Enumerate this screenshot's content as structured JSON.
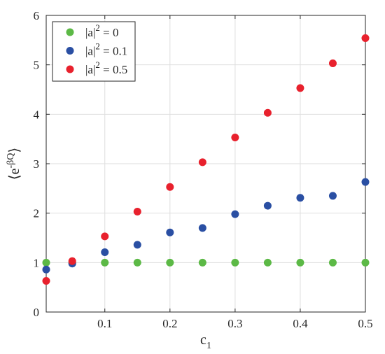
{
  "chart_data": {
    "type": "scatter",
    "xlabel": "c",
    "xlabel_sub": "1",
    "ylabel": "⟨e",
    "ylabel_sup": "-βQ",
    "ylabel_close": "⟩",
    "xlim": [
      0.01,
      0.5
    ],
    "ylim": [
      0,
      6
    ],
    "xticks": [
      0.1,
      0.2,
      0.3,
      0.4,
      0.5
    ],
    "yticks": [
      0,
      1,
      2,
      3,
      4,
      5,
      6
    ],
    "grid": true,
    "legend_position": "top-left",
    "x": [
      0.01,
      0.05,
      0.1,
      0.15,
      0.2,
      0.25,
      0.3,
      0.35,
      0.4,
      0.45,
      0.5
    ],
    "series": [
      {
        "name": "|a|2 = 0",
        "label_pre": "|a|",
        "label_sup": "2",
        "label_post": " = 0",
        "color": "#5cb946",
        "values": [
          1,
          1,
          1,
          1,
          1,
          1,
          1,
          1,
          1,
          1,
          1
        ]
      },
      {
        "name": "|a|2 = 0.1",
        "label_pre": "|a|",
        "label_sup": "2",
        "label_post": " = 0.1",
        "color": "#2a4fa3",
        "values": [
          0.86,
          0.98,
          1.21,
          1.36,
          1.61,
          1.7,
          1.98,
          2.15,
          2.31,
          2.35,
          2.63
        ]
      },
      {
        "name": "|a|2 = 0.5",
        "label_pre": "|a|",
        "label_sup": "2",
        "label_post": " = 0.5",
        "color": "#e8212d",
        "values": [
          0.63,
          1.03,
          1.53,
          2.03,
          2.53,
          3.03,
          3.53,
          4.03,
          4.53,
          5.03,
          5.54
        ]
      }
    ]
  }
}
